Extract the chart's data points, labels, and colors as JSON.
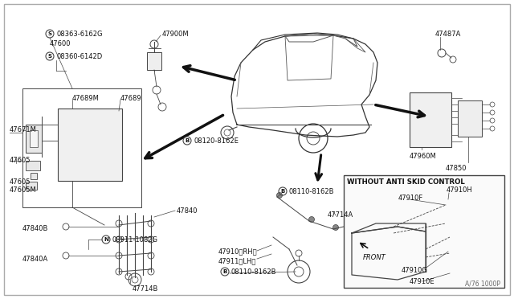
{
  "bg_color": "#ffffff",
  "line_color": "#444444",
  "text_color": "#111111",
  "fig_width": 6.4,
  "fig_height": 3.72,
  "diagram_note": "A/76 1000P",
  "without_asc_label": "WITHOUT ANTI SKID CONTROL",
  "front_label": "FRONT"
}
